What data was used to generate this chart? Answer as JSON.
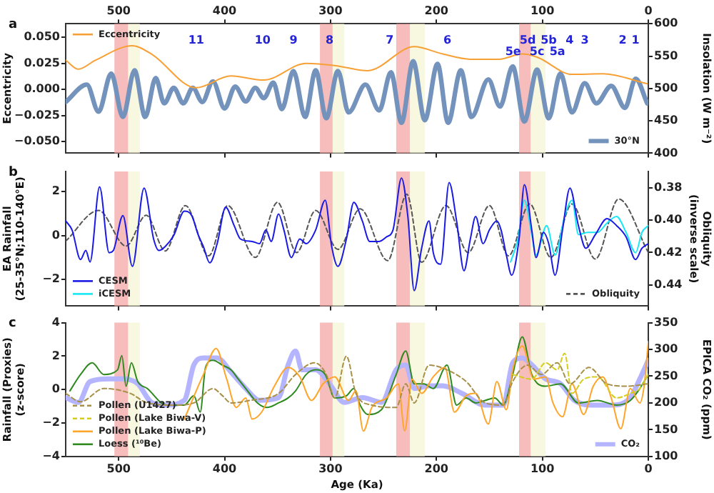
{
  "chart_data": [
    {
      "type": "line",
      "title": "a",
      "ylabel": "Eccentricity",
      "y2label": "Insolation (W m⁻²)",
      "xlim": [
        550,
        0
      ],
      "xticks": [
        500,
        400,
        300,
        200,
        100,
        0
      ],
      "ylim": [
        -0.061,
        0.063
      ],
      "yticks": [
        {
          "value": -0.05,
          "label": "−0.050"
        },
        {
          "value": -0.025,
          "label": "−0.025"
        },
        {
          "value": 0,
          "label": "0.000"
        },
        {
          "value": 0.025,
          "label": "0.025"
        },
        {
          "value": 0.05,
          "label": "0.050"
        }
      ],
      "y2lim": [
        400,
        600
      ],
      "y2ticks": [
        400,
        450,
        500,
        550,
        600
      ],
      "legend": "top left",
      "series": [
        {
          "name": "Eccentricity",
          "color": "#f7a035",
          "x": [
            550,
            538,
            522,
            487,
            469,
            427,
            394,
            363,
            323,
            296,
            265,
            221,
            194,
            168,
            141,
            119,
            105,
            72,
            43,
            1
          ],
          "values": [
            0.028,
            0.0195,
            0.028,
            0.042,
            0.034,
            0.0017,
            0.013,
            0.009,
            0.025,
            0.023,
            0.018,
            0.041,
            0.034,
            0.029,
            0.029,
            0.034,
            0.031,
            0.0145,
            0.015,
            0.0055
          ]
        },
        {
          "name": "30°N",
          "color": "#7393bd",
          "axis": "y2",
          "x": [
            550,
            530,
            519,
            507,
            496,
            485,
            475,
            465,
            457,
            448,
            439,
            430,
            421,
            411,
            400,
            390,
            380,
            371,
            363,
            354,
            346,
            335,
            324,
            314,
            304,
            293,
            283,
            267,
            254,
            243,
            233,
            222,
            211,
            199,
            189,
            177,
            167,
            151,
            140,
            128,
            117,
            105,
            94,
            83,
            72,
            60,
            49,
            35,
            22,
            12,
            1
          ],
          "values": [
            479,
            506,
            464,
            523,
            456,
            528,
            456,
            516,
            477,
            501,
            477,
            501,
            479,
            511,
            469,
            503,
            480,
            501,
            485,
            509,
            468,
            527,
            456,
            528,
            454,
            527,
            463,
            506,
            466,
            525,
            447,
            542,
            451,
            538,
            447,
            528,
            456,
            514,
            472,
            534,
            449,
            529,
            454,
            523,
            463,
            508,
            477,
            504,
            470,
            515,
            477
          ]
        }
      ],
      "bands": [
        {
          "axis": "x",
          "from": 504,
          "to": 491,
          "color": "#f4a6a6"
        },
        {
          "axis": "x",
          "from": 491,
          "to": 480,
          "color": "#f6f4d6"
        },
        {
          "axis": "x",
          "from": 310,
          "to": 298,
          "color": "#f4a6a6"
        },
        {
          "axis": "x",
          "from": 298,
          "to": 287,
          "color": "#f6f4d6"
        },
        {
          "axis": "x",
          "from": 238,
          "to": 225,
          "color": "#f4a6a6"
        },
        {
          "axis": "x",
          "from": 225,
          "to": 211,
          "color": "#f6f4d6"
        },
        {
          "axis": "x",
          "from": 122,
          "to": 111,
          "color": "#f4a6a6"
        },
        {
          "axis": "x",
          "from": 111,
          "to": 97,
          "color": "#f6f4d6"
        }
      ],
      "annotations": [
        "11",
        "10",
        "9",
        "8",
        "7",
        "6",
        "5e",
        "5d",
        "5c",
        "5b",
        "5a",
        "4",
        "3",
        "2",
        "1"
      ]
    },
    {
      "type": "line",
      "title": "b",
      "ylabel": "EA Rainfall\n(25-35°N;110-140°E)",
      "y2label": "Obliquity (inverse scale)",
      "xlim": [
        550,
        0
      ],
      "xticks": [
        500,
        400,
        300,
        200,
        100,
        0
      ],
      "tick_labels": "y",
      "ylim": [
        -3.2,
        2.9
      ],
      "yticks": [
        {
          "value": -2,
          "label": "−2"
        },
        0,
        2
      ],
      "y2lim": [
        0.453,
        0.37
      ],
      "y2ticks": [
        {
          "value": 0.38,
          "label": "0.38"
        },
        {
          "value": 0.4,
          "label": "0.40"
        },
        {
          "value": 0.42,
          "label": "0.42"
        },
        {
          "value": 0.44,
          "label": "0.44"
        }
      ],
      "legend": "bottom left",
      "series": [
        {
          "name": "CESM",
          "color": "#1a1ae6",
          "x": [
            550,
            544,
            536,
            531,
            527,
            518,
            509,
            505,
            496,
            487,
            476,
            467,
            462,
            456,
            448,
            438,
            431,
            425,
            420,
            414,
            407,
            399,
            391,
            385,
            374,
            367,
            361,
            356,
            349,
            344,
            337,
            329,
            323,
            314,
            305,
            299,
            293,
            285,
            278,
            270,
            263,
            254,
            247,
            241,
            233,
            227,
            221,
            214,
            207,
            203,
            196,
            188,
            181,
            174,
            168,
            163,
            156,
            150,
            143,
            139,
            134,
            129,
            122,
            117,
            110,
            106,
            99,
            94,
            88,
            81,
            74,
            66,
            59,
            50,
            39,
            30,
            21,
            12,
            6,
            0
          ],
          "values": [
            0.66,
            0.25,
            -1.09,
            -0.68,
            -1.2,
            2.2,
            -0.78,
            -0.68,
            0.9,
            -1.4,
            2.15,
            -0.16,
            -0.68,
            -0.5,
            0,
            1.1,
            0.9,
            0.04,
            -0.5,
            -1.24,
            -0.37,
            1.28,
            0.45,
            -0.16,
            -0.27,
            -0.37,
            0.25,
            -0.27,
            0.97,
            0.25,
            -1,
            -0.16,
            -0.37,
            0.25,
            1.6,
            -0.47,
            -1.4,
            -0.16,
            1.5,
            0.66,
            -0.27,
            -0.27,
            -0.06,
            0.25,
            2.6,
            0.86,
            -2.5,
            -0.58,
            0.66,
            -0.78,
            -1.3,
            2.4,
            0.66,
            -1.6,
            -0.16,
            0.86,
            -0.37,
            0.25,
            0.66,
            0.25,
            -0.89,
            -1.8,
            -0.16,
            2.3,
            0.25,
            -1,
            0.14,
            -0.37,
            -1.8,
            0.25,
            2.15,
            0.45,
            -0.58,
            0.04,
            0.76,
            0.45,
            -0.06,
            -1.09,
            -0.58,
            -0.37
          ]
        },
        {
          "name": "iCESM",
          "color": "#18e8f5",
          "x": [
            130,
            123,
            117,
            110,
            106,
            96,
            88,
            79,
            72,
            66,
            57,
            48,
            39,
            30,
            21,
            12,
            6,
            0
          ],
          "values": [
            -1.2,
            -0.16,
            1.6,
            0.04,
            -0.89,
            0.45,
            -0.89,
            0.86,
            1.6,
            0.04,
            0.14,
            0.14,
            0.56,
            0.86,
            0.14,
            -0.78,
            0.14,
            0.45
          ]
        },
        {
          "name": "Obliquity",
          "color": "#555555",
          "axis": "y2",
          "line_style": "dashed",
          "x": [
            550,
            519,
            493,
            474,
            456,
            437,
            415,
            397,
            371,
            350,
            332,
            314,
            293,
            272,
            246,
            228,
            214,
            191,
            170,
            150,
            132,
            112,
            92,
            72,
            50,
            28,
            0
          ],
          "values": [
            0.413,
            0.394,
            0.416,
            0.397,
            0.419,
            0.391,
            0.422,
            0.391,
            0.423,
            0.389,
            0.42,
            0.394,
            0.418,
            0.393,
            0.425,
            0.384,
            0.426,
            0.391,
            0.42,
            0.391,
            0.422,
            0.39,
            0.423,
            0.39,
            0.424,
            0.387,
            0.42
          ]
        }
      ],
      "bands": [
        {
          "axis": "x",
          "from": 504,
          "to": 491,
          "color": "#f4a6a6"
        },
        {
          "axis": "x",
          "from": 491,
          "to": 480,
          "color": "#f6f4d6"
        },
        {
          "axis": "x",
          "from": 310,
          "to": 298,
          "color": "#f4a6a6"
        },
        {
          "axis": "x",
          "from": 298,
          "to": 287,
          "color": "#f6f4d6"
        },
        {
          "axis": "x",
          "from": 238,
          "to": 225,
          "color": "#f4a6a6"
        },
        {
          "axis": "x",
          "from": 225,
          "to": 211,
          "color": "#f6f4d6"
        },
        {
          "axis": "x",
          "from": 122,
          "to": 111,
          "color": "#f4a6a6"
        },
        {
          "axis": "x",
          "from": 111,
          "to": 97,
          "color": "#f6f4d6"
        }
      ]
    },
    {
      "type": "line",
      "title": "c",
      "xlabel": "Age (Ka)",
      "ylabel": "Rainfall (Proxies)\n(z-score)",
      "y2label": "EPICA CO₂ (ppm)",
      "xlim": [
        550,
        0
      ],
      "xticks": [
        500,
        400,
        300,
        200,
        100,
        0
      ],
      "ylim": [
        -4,
        4
      ],
      "yticks": [
        {
          "value": -4,
          "label": "−4"
        },
        {
          "value": -2,
          "label": "−2"
        },
        0,
        2,
        4
      ],
      "y2lim": [
        100,
        350
      ],
      "y2ticks": [
        100,
        150,
        200,
        250,
        300,
        350
      ],
      "legend": "bottom left",
      "series": [
        {
          "name": "Pollen (U1427)",
          "color": "#a89048",
          "line_style": "dashed",
          "x": [
            550,
            536,
            514,
            489,
            473,
            447,
            429,
            411,
            402,
            394,
            376,
            349,
            333,
            315,
            304,
            296,
            285,
            276,
            261,
            238,
            229,
            221,
            207,
            190,
            172,
            154,
            137,
            128,
            114,
            101,
            86,
            74,
            56,
            39,
            21,
            0
          ],
          "values": [
            -0.23,
            -0.73,
            0.06,
            -0.23,
            -0.8,
            -0.93,
            -0.8,
            0.06,
            -0.37,
            -0.8,
            -0.65,
            -0.23,
            0.9,
            1.6,
            0.9,
            -0.5,
            2,
            -0.23,
            -0.93,
            -1.07,
            0.34,
            -0.8,
            1.46,
            1.18,
            0.48,
            -0.8,
            -0.93,
            0.48,
            1.46,
            0.9,
            1.6,
            0.34,
            1.32,
            0.34,
            0.2,
            0.34
          ]
        },
        {
          "name": "Pollen (Lake Biwa-V)",
          "color": "#d6cc1e",
          "line_style": "dashed",
          "x": [
            128,
            110,
            97,
            86,
            79,
            72,
            61,
            48,
            30,
            17,
            8,
            0
          ],
          "values": [
            0.9,
            0.62,
            1.6,
            1.18,
            2.17,
            -0.23,
            0.62,
            0.76,
            -0.5,
            -0.23,
            0.06,
            0.9
          ]
        },
        {
          "name": "Pollen (Lake Biwa-P)",
          "color": "#ffa52a",
          "x": [
            438,
            420,
            408,
            398,
            389,
            380,
            374,
            365,
            353,
            340,
            329,
            318,
            307,
            296,
            283,
            276,
            269,
            261,
            247,
            236,
            230,
            223,
            214,
            203,
            192,
            183,
            172,
            163,
            151,
            143,
            134,
            128,
            119,
            108,
            97,
            90,
            81,
            72,
            61,
            52,
            43,
            35,
            26,
            17,
            8,
            4,
            0
          ],
          "values": [
            -1.77,
            0.9,
            2.45,
            0.62,
            -1.07,
            -0.5,
            -1.77,
            -1.35,
            0.2,
            1.32,
            0.76,
            -0.65,
            0.34,
            0.76,
            -0.65,
            -0.08,
            -2.48,
            -1.07,
            -0.5,
            0.34,
            -2.48,
            0.62,
            -0.23,
            0.76,
            1.32,
            -1.35,
            -0.37,
            -0.23,
            -2.06,
            0.48,
            -1.21,
            1.18,
            2.6,
            0.62,
            0.76,
            -0.8,
            -1.63,
            0.34,
            -1.49,
            0.2,
            0.76,
            -0.5,
            -2.34,
            0.06,
            -0.8,
            0.2,
            2.87
          ]
        },
        {
          "name": "Loess (¹⁰Be)",
          "color": "#2e8a1e",
          "x": [
            546,
            536,
            525,
            514,
            501,
            497,
            493,
            488,
            482,
            473,
            455,
            438,
            429,
            423,
            418,
            411,
            402,
            394,
            387,
            380,
            369,
            360,
            349,
            340,
            333,
            323,
            314,
            305,
            296,
            285,
            278,
            272,
            265,
            252,
            238,
            229,
            221,
            212,
            203,
            190,
            181,
            172,
            163,
            154,
            145,
            137,
            128,
            119,
            110,
            97,
            83,
            66,
            48,
            30,
            17,
            8,
            0
          ],
          "values": [
            -0.08,
            0.9,
            1.6,
            0.9,
            1.18,
            2.03,
            0.2,
            1.6,
            0.48,
            0.06,
            -0.93,
            -0.93,
            -0.37,
            -1.35,
            1.32,
            1.75,
            1.46,
            1.18,
            0.62,
            0.06,
            -0.8,
            -1.07,
            -0.8,
            -0.5,
            -0.08,
            0.9,
            1.18,
            0.9,
            -0.5,
            -0.37,
            0.06,
            -0.93,
            -1.49,
            -1.21,
            0.9,
            2.31,
            0.34,
            0.34,
            0.06,
            1.46,
            -0.93,
            -0.5,
            -0.8,
            -0.65,
            -0.5,
            -0.93,
            0.9,
            3.15,
            0.9,
            0.2,
            0.34,
            -0.8,
            -0.65,
            -0.93,
            -0.65,
            0.06,
            0.9
          ]
        },
        {
          "name": "CO₂",
          "color": "#b4b4ff",
          "axis": "y2",
          "x": [
            550,
            538,
            527,
            509,
            496,
            482,
            469,
            456,
            438,
            429,
            420,
            407,
            394,
            380,
            367,
            349,
            340,
            333,
            327,
            314,
            301,
            287,
            270,
            252,
            238,
            229,
            221,
            207,
            194,
            176,
            154,
            137,
            128,
            119,
            110,
            97,
            83,
            70,
            52,
            35,
            17,
            8,
            0
          ],
          "values": [
            210,
            201,
            240,
            245,
            245,
            236,
            201,
            196,
            205,
            271,
            284,
            284,
            258,
            227,
            205,
            210,
            271,
            297,
            262,
            262,
            236,
            201,
            210,
            201,
            262,
            271,
            227,
            232,
            232,
            218,
            196,
            196,
            275,
            284,
            271,
            245,
            236,
            205,
            196,
            196,
            210,
            245,
            280
          ]
        }
      ],
      "bands": [
        {
          "axis": "x",
          "from": 504,
          "to": 491,
          "color": "#f4a6a6"
        },
        {
          "axis": "x",
          "from": 491,
          "to": 480,
          "color": "#f6f4d6"
        },
        {
          "axis": "x",
          "from": 310,
          "to": 298,
          "color": "#f4a6a6"
        },
        {
          "axis": "x",
          "from": 298,
          "to": 287,
          "color": "#f6f4d6"
        },
        {
          "axis": "x",
          "from": 238,
          "to": 225,
          "color": "#f4a6a6"
        },
        {
          "axis": "x",
          "from": 225,
          "to": 211,
          "color": "#f6f4d6"
        },
        {
          "axis": "x",
          "from": 122,
          "to": 111,
          "color": "#f4a6a6"
        },
        {
          "axis": "x",
          "from": 111,
          "to": 97,
          "color": "#f6f4d6"
        }
      ]
    }
  ]
}
